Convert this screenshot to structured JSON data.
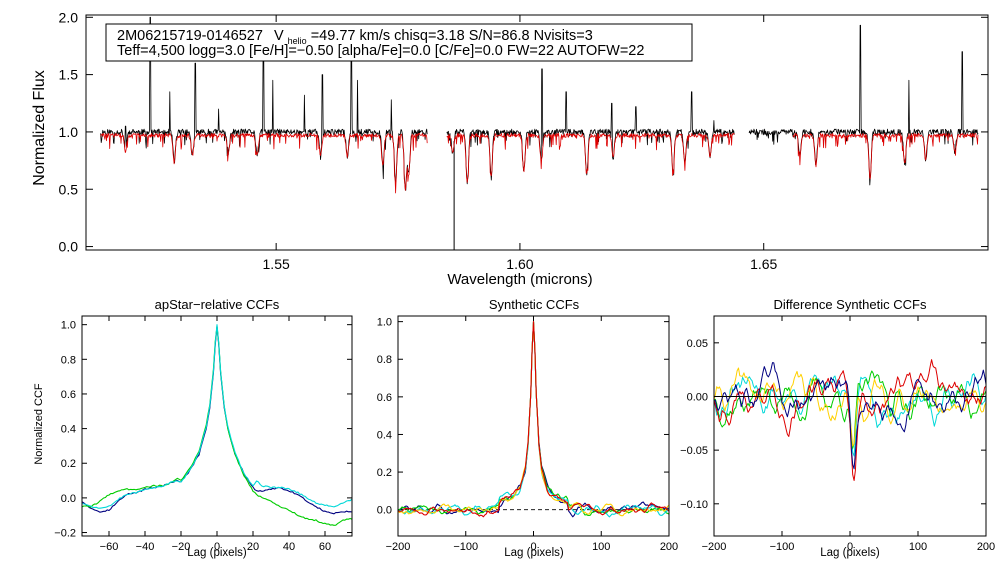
{
  "chart_data": [
    {
      "type": "line",
      "title": "",
      "xlabel": "Wavelength (microns)",
      "ylabel": "Normalized Flux",
      "xlim": [
        1.511,
        1.696
      ],
      "ylim": [
        -0.03,
        2.02
      ],
      "xticks": [
        1.55,
        1.6,
        1.65
      ],
      "xtick_labels": [
        "1.55",
        "1.60",
        "1.65"
      ],
      "yticks": [
        0.0,
        0.5,
        1.0,
        1.5,
        2.0
      ],
      "ytick_labels": [
        "0.0",
        "0.5",
        "1.0",
        "1.5",
        "2.0"
      ],
      "chips": [
        [
          1.514,
          1.581
        ],
        [
          1.585,
          1.644
        ],
        [
          1.647,
          1.694
        ]
      ],
      "bad_pixel": {
        "x": 1.5865,
        "ymin": -0.03,
        "ymax": 0.92
      },
      "annotation": {
        "line1_star": "2M06215719-0146527",
        "line1_v": "V",
        "line1_sub": "helio",
        "line1_rest": "=49.77 km/s  chisq=3.18  S/N=86.8  Nvisits=3",
        "line2": "Teff=4,500 logg=3.0 [Fe/H]=−0.50 [alpha/Fe]=0.0 [C/Fe]=0.0 FW=22 AUTOFW=22"
      },
      "series": [
        {
          "name": "observed",
          "color": "#000000",
          "continuum": 1.0,
          "noise": 0.025,
          "seed": 11,
          "spikes": [
            [
              1.5191,
              1.05
            ],
            [
              1.5242,
              2.0
            ],
            [
              1.5282,
              1.35
            ],
            [
              1.5334,
              1.6
            ],
            [
              1.5382,
              1.2
            ],
            [
              1.5474,
              1.75
            ],
            [
              1.5493,
              1.45
            ],
            [
              1.5558,
              1.32
            ],
            [
              1.5595,
              1.5
            ],
            [
              1.5654,
              1.78
            ],
            [
              1.5667,
              1.45
            ],
            [
              1.5736,
              1.28
            ],
            [
              1.6045,
              1.55
            ],
            [
              1.6095,
              1.35
            ],
            [
              1.6188,
              1.25
            ],
            [
              1.6238,
              1.22
            ],
            [
              1.6352,
              1.35
            ],
            [
              1.6398,
              1.1
            ],
            [
              1.6698,
              1.93
            ],
            [
              1.6798,
              1.45
            ],
            [
              1.6907,
              1.7
            ]
          ],
          "absorptions": [
            [
              1.5191,
              0.83
            ],
            [
              1.5291,
              0.74
            ],
            [
              1.5328,
              0.8
            ],
            [
              1.5402,
              0.82
            ],
            [
              1.5461,
              0.8
            ],
            [
              1.5591,
              0.81
            ],
            [
              1.5646,
              0.79
            ],
            [
              1.5719,
              0.72
            ],
            [
              1.5745,
              0.55
            ],
            [
              1.5765,
              0.5
            ],
            [
              1.5772,
              0.64
            ],
            [
              1.5862,
              0.81
            ],
            [
              1.5892,
              0.56
            ],
            [
              1.5941,
              0.62
            ],
            [
              1.6008,
              0.66
            ],
            [
              1.6044,
              0.75
            ],
            [
              1.6137,
              0.63
            ],
            [
              1.6191,
              0.77
            ],
            [
              1.6314,
              0.66
            ],
            [
              1.6338,
              0.73
            ],
            [
              1.639,
              0.78
            ],
            [
              1.6574,
              0.8
            ],
            [
              1.6607,
              0.7
            ],
            [
              1.6718,
              0.59
            ],
            [
              1.6789,
              0.72
            ],
            [
              1.6832,
              0.77
            ],
            [
              1.6892,
              0.83
            ]
          ]
        },
        {
          "name": "synthetic",
          "color": "#dd0000",
          "continuum": 0.97,
          "noise": 0.018,
          "seed": 29,
          "ranges": [
            [
              1.514,
              1.581
            ],
            [
              1.585,
              1.644
            ],
            [
              1.656,
              1.694
            ]
          ],
          "absorptions": [
            [
              1.5191,
              0.83
            ],
            [
              1.5291,
              0.74
            ],
            [
              1.5328,
              0.8
            ],
            [
              1.5402,
              0.82
            ],
            [
              1.5461,
              0.8
            ],
            [
              1.5591,
              0.81
            ],
            [
              1.5646,
              0.79
            ],
            [
              1.5719,
              0.72
            ],
            [
              1.5745,
              0.55
            ],
            [
              1.5765,
              0.5
            ],
            [
              1.5772,
              0.64
            ],
            [
              1.5862,
              0.81
            ],
            [
              1.5892,
              0.56
            ],
            [
              1.5941,
              0.62
            ],
            [
              1.6008,
              0.66
            ],
            [
              1.6044,
              0.75
            ],
            [
              1.6137,
              0.63
            ],
            [
              1.6191,
              0.77
            ],
            [
              1.6314,
              0.66
            ],
            [
              1.6338,
              0.73
            ],
            [
              1.639,
              0.78
            ],
            [
              1.6574,
              0.8
            ],
            [
              1.6607,
              0.7
            ],
            [
              1.6718,
              0.59
            ],
            [
              1.6789,
              0.72
            ],
            [
              1.6832,
              0.77
            ],
            [
              1.6892,
              0.83
            ]
          ]
        }
      ]
    },
    {
      "type": "line",
      "title": "apStar−relative CCFs",
      "xlabel": "Lag (pixels)",
      "ylabel": "Normalized CCF",
      "xlim": [
        -75,
        75
      ],
      "ylim": [
        -0.22,
        1.05
      ],
      "xticks": [
        -60,
        -40,
        -20,
        0,
        20,
        40,
        60
      ],
      "xtick_labels": [
        "−60",
        "−40",
        "−20",
        "0",
        "20",
        "40",
        "60"
      ],
      "yticks": [
        -0.2,
        0.0,
        0.2,
        0.4,
        0.6,
        0.8,
        1.0
      ],
      "ytick_labels": [
        "−0.2",
        "0.0",
        "0.2",
        "0.4",
        "0.6",
        "0.8",
        "1.0"
      ],
      "series": [
        {
          "name": "ccf-1",
          "color": "#000080",
          "x": [
            -75,
            -70,
            -65,
            -60,
            -55,
            -50,
            -45,
            -40,
            -35,
            -30,
            -25,
            -22,
            -20,
            -15,
            -10,
            -6,
            -4,
            -2,
            -1,
            0,
            1,
            2,
            4,
            6,
            10,
            15,
            20,
            22,
            25,
            30,
            35,
            40,
            45,
            50,
            55,
            60,
            65,
            70,
            75
          ],
          "y": [
            -0.02,
            -0.06,
            -0.08,
            -0.07,
            -0.02,
            0.02,
            0.03,
            0.05,
            0.06,
            0.07,
            0.09,
            0.1,
            0.09,
            0.16,
            0.25,
            0.4,
            0.52,
            0.72,
            0.88,
            0.99,
            0.88,
            0.72,
            0.52,
            0.4,
            0.25,
            0.14,
            0.06,
            0.04,
            0.04,
            0.05,
            0.06,
            0.04,
            0.02,
            -0.02,
            -0.05,
            -0.08,
            -0.09,
            -0.08,
            -0.08
          ]
        },
        {
          "name": "ccf-2",
          "color": "#00cc00",
          "x": [
            -75,
            -70,
            -65,
            -60,
            -55,
            -50,
            -45,
            -40,
            -35,
            -30,
            -25,
            -22,
            -20,
            -15,
            -10,
            -6,
            -4,
            -2,
            -1,
            0,
            1,
            2,
            4,
            6,
            10,
            15,
            20,
            22,
            25,
            30,
            35,
            40,
            45,
            50,
            55,
            60,
            65,
            70,
            75
          ],
          "y": [
            -0.05,
            -0.05,
            -0.02,
            0.02,
            0.04,
            0.05,
            0.05,
            0.06,
            0.07,
            0.07,
            0.09,
            0.11,
            0.1,
            0.17,
            0.27,
            0.42,
            0.54,
            0.74,
            0.9,
            0.99,
            0.89,
            0.73,
            0.53,
            0.4,
            0.25,
            0.13,
            0.04,
            0.02,
            0.0,
            -0.02,
            -0.05,
            -0.07,
            -0.1,
            -0.12,
            -0.13,
            -0.15,
            -0.16,
            -0.13,
            -0.12
          ]
        },
        {
          "name": "ccf-3",
          "color": "#00d8d8",
          "x": [
            -75,
            -70,
            -65,
            -60,
            -55,
            -50,
            -45,
            -40,
            -35,
            -30,
            -25,
            -22,
            -20,
            -15,
            -10,
            -6,
            -4,
            -2,
            -1,
            0,
            1,
            2,
            4,
            6,
            10,
            15,
            20,
            22,
            25,
            30,
            35,
            40,
            45,
            50,
            55,
            60,
            65,
            70,
            75
          ],
          "y": [
            -0.03,
            -0.05,
            -0.06,
            -0.05,
            -0.01,
            0.02,
            0.03,
            0.05,
            0.06,
            0.07,
            0.09,
            0.1,
            0.09,
            0.16,
            0.26,
            0.41,
            0.53,
            0.73,
            0.89,
            1.0,
            0.89,
            0.73,
            0.53,
            0.41,
            0.26,
            0.14,
            0.07,
            0.1,
            0.07,
            0.06,
            0.06,
            0.05,
            0.03,
            0.0,
            -0.03,
            -0.04,
            -0.05,
            -0.03,
            -0.01
          ]
        }
      ]
    },
    {
      "type": "line",
      "title": "Synthetic CCFs",
      "xlabel": "Lag (pixels)",
      "ylabel": "",
      "xlim": [
        -200,
        200
      ],
      "ylim": [
        -0.14,
        1.03
      ],
      "xticks": [
        -200,
        -100,
        0,
        100,
        200
      ],
      "xtick_labels": [
        "−200",
        "−100",
        "0",
        "100",
        "200"
      ],
      "yticks": [
        0.0,
        0.2,
        0.4,
        0.6,
        0.8,
        1.0
      ],
      "ytick_labels": [
        "0.0",
        "0.2",
        "0.4",
        "0.6",
        "0.8",
        "1.0"
      ],
      "reference_line": {
        "y": 0.0,
        "style": "dashed"
      },
      "peak": {
        "x": [
          -50,
          -30,
          -20,
          -12,
          -8,
          -4,
          -2,
          0,
          2,
          4,
          8,
          12,
          20,
          30,
          50
        ],
        "y": [
          0.03,
          0.07,
          0.12,
          0.22,
          0.35,
          0.62,
          0.85,
          1.0,
          0.85,
          0.62,
          0.35,
          0.22,
          0.12,
          0.07,
          0.03
        ]
      },
      "series": [
        {
          "name": "ccf-1",
          "color": "#000080",
          "seed": 3
        },
        {
          "name": "ccf-2",
          "color": "#00cc00",
          "seed": 7
        },
        {
          "name": "ccf-3",
          "color": "#00d8d8",
          "seed": 13
        },
        {
          "name": "ccf-4",
          "color": "#ffd000",
          "seed": 19
        },
        {
          "name": "ccf-5",
          "color": "#dd0000",
          "seed": 23
        }
      ]
    },
    {
      "type": "line",
      "title": "Difference Synthetic CCFs",
      "xlabel": "Lag (pixels)",
      "ylabel": "",
      "xlim": [
        -200,
        200
      ],
      "ylim": [
        -0.13,
        0.075
      ],
      "xticks": [
        -200,
        -100,
        0,
        100,
        200
      ],
      "xtick_labels": [
        "−200",
        "−100",
        "0",
        "100",
        "200"
      ],
      "yticks": [
        -0.1,
        -0.05,
        0.0,
        0.05
      ],
      "ytick_labels": [
        "−0.10",
        "−0.05",
        "0.00",
        "0.05"
      ],
      "reference_line": {
        "y": 0.0,
        "style": "solid"
      },
      "series": [
        {
          "name": "diff-1",
          "color": "#00d8d8",
          "seed": 31
        },
        {
          "name": "diff-2",
          "color": "#00cc00",
          "seed": 37
        },
        {
          "name": "diff-3",
          "color": "#ffd000",
          "seed": 41
        },
        {
          "name": "diff-4",
          "color": "#dd0000",
          "seed": 43
        },
        {
          "name": "diff-5",
          "color": "#000080",
          "seed": 47
        }
      ]
    }
  ]
}
